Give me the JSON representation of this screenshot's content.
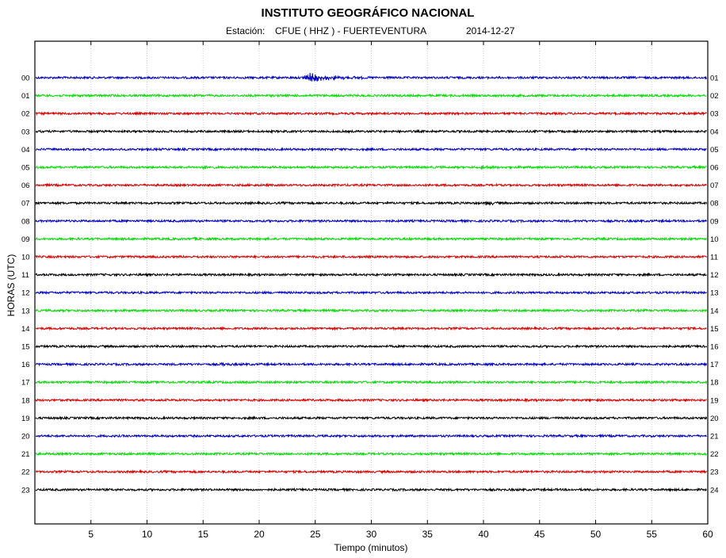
{
  "header": {
    "title": "INSTITUTO GEOGRÁFICO NACIONAL",
    "station_label": "Estación:",
    "station_name": "CFUE ( HHZ ) - FUERTEVENTURA",
    "date": "2014-12-27"
  },
  "chart_data": {
    "type": "line",
    "title": "INSTITUTO GEOGRÁFICO NACIONAL",
    "subtitle": "Estación:  CFUE ( HHZ ) - FUERTEVENTURA     2014-12-27",
    "xlabel": "Tiempo (minutos)",
    "ylabel": "HORAS (UTC)",
    "xlim": [
      0,
      60
    ],
    "x_ticks": [
      5,
      10,
      15,
      20,
      25,
      30,
      35,
      40,
      45,
      50,
      55,
      60
    ],
    "grid": true,
    "left_hour_labels": [
      "00",
      "01",
      "02",
      "03",
      "04",
      "05",
      "06",
      "07",
      "08",
      "09",
      "10",
      "11",
      "12",
      "13",
      "14",
      "15",
      "16",
      "17",
      "18",
      "19",
      "20",
      "21",
      "22",
      "23"
    ],
    "right_hour_labels": [
      "01",
      "02",
      "03",
      "04",
      "05",
      "06",
      "07",
      "08",
      "09",
      "10",
      "11",
      "12",
      "13",
      "14",
      "15",
      "16",
      "17",
      "18",
      "19",
      "20",
      "21",
      "22",
      "23",
      "24"
    ],
    "trace_colors": [
      "#0000cc",
      "#00dd00",
      "#dd0000",
      "#000000"
    ],
    "events": [
      {
        "hour_row": "00",
        "start_min": 23.8,
        "end_min": 30.0,
        "peak_amplitude": 5
      },
      {
        "hour_row": "05",
        "start_min": 14.8,
        "end_min": 16.5,
        "peak_amplitude": 1.5
      },
      {
        "hour_row": "05",
        "start_min": 39.5,
        "end_min": 41.5,
        "peak_amplitude": 1.5
      },
      {
        "hour_row": "07",
        "start_min": 40.0,
        "end_min": 42.0,
        "peak_amplitude": 2.5
      },
      {
        "hour_row": "09",
        "start_min": 14.0,
        "end_min": 15.5,
        "peak_amplitude": 1.5
      },
      {
        "hour_row": "16",
        "start_min": 16.5,
        "end_min": 18.5,
        "peak_amplitude": 1.3
      }
    ]
  }
}
